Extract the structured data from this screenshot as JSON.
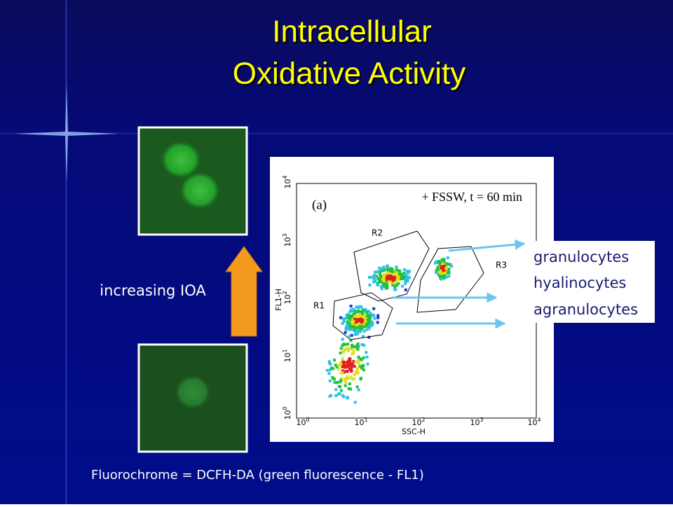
{
  "title": {
    "line1": "Intracellular",
    "line2": "Oxidative Activity"
  },
  "arrow_label": "increasing IOA",
  "caption": "Fluorochrome = DCFH-DA (green fluorescence - FL1)",
  "plot": {
    "panel_label": "(a)",
    "condition": "+ FSSW, t = 60 min",
    "x_label": "SSC-H",
    "y_label": "FL1-H",
    "x_ticks": [
      {
        "base": "10",
        "exp": "0"
      },
      {
        "base": "10",
        "exp": "1"
      },
      {
        "base": "10",
        "exp": "2"
      },
      {
        "base": "10",
        "exp": "3"
      },
      {
        "base": "10",
        "exp": "4"
      }
    ],
    "y_ticks": [
      {
        "base": "10",
        "exp": "0"
      },
      {
        "base": "10",
        "exp": "1"
      },
      {
        "base": "10",
        "exp": "2"
      },
      {
        "base": "10",
        "exp": "3"
      },
      {
        "base": "10",
        "exp": "4"
      }
    ],
    "gates": [
      "R1",
      "R2",
      "R3"
    ]
  },
  "legend": [
    "granulocytes",
    "hyalinocytes",
    "agranulocytes"
  ]
}
